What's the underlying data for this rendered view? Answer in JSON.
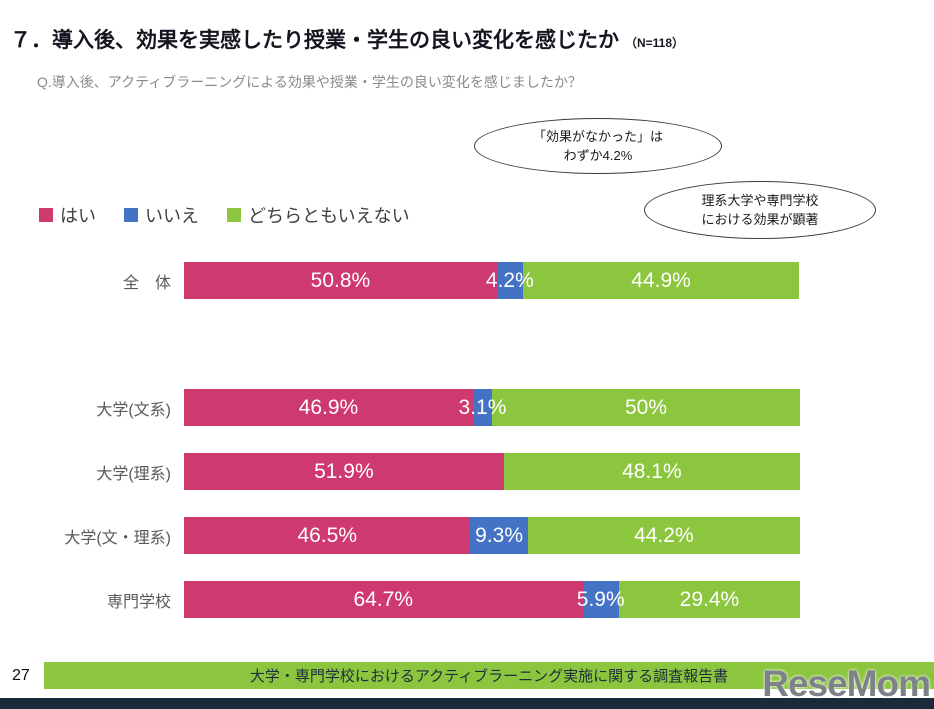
{
  "page": {
    "title": "７．導入後、効果を実感したり授業・学生の良い変化を感じたか",
    "n_label": "（N=118）",
    "subtitle": "Q.導入後、アクティブラーニングによる効果や授業・学生の良い変化を感じましたか？",
    "callouts": [
      {
        "text": "「効果がなかった」は\nわずか4.2%"
      },
      {
        "text": "理系大学や専門学校\nにおける効果が顕著"
      }
    ],
    "footer": {
      "page_number": "27",
      "text": "大学・専門学校におけるアクティブラーニング実施に関する調査報告書"
    },
    "watermark": "ReseMom"
  },
  "chart_data": {
    "type": "bar",
    "orientation": "horizontal",
    "stacked": true,
    "unit": "%",
    "xlim": [
      0,
      100
    ],
    "grid": false,
    "legend_position": "top-left",
    "categories": [
      "全　体",
      "大学(文系)",
      "大学(理系)",
      "大学(文・理系)",
      "専門学校"
    ],
    "series": [
      {
        "name": "はい",
        "color": "#CE3A6F",
        "values": [
          50.8,
          46.9,
          51.9,
          46.5,
          64.7
        ]
      },
      {
        "name": "いいえ",
        "color": "#4472C4",
        "values": [
          4.2,
          3.1,
          0,
          9.3,
          5.9
        ]
      },
      {
        "name": "どちらともいえない",
        "color": "#8CC63F",
        "values": [
          44.9,
          50.0,
          48.1,
          44.2,
          29.4
        ]
      }
    ],
    "value_labels": [
      [
        "50.8%",
        "4.2%",
        "44.9%"
      ],
      [
        "46.9%",
        "3.1%",
        "50%"
      ],
      [
        "51.9%",
        "",
        "48.1%"
      ],
      [
        "46.5%",
        "9.3%",
        "44.2%"
      ],
      [
        "64.7%",
        "5.9%",
        "29.4%"
      ]
    ]
  }
}
